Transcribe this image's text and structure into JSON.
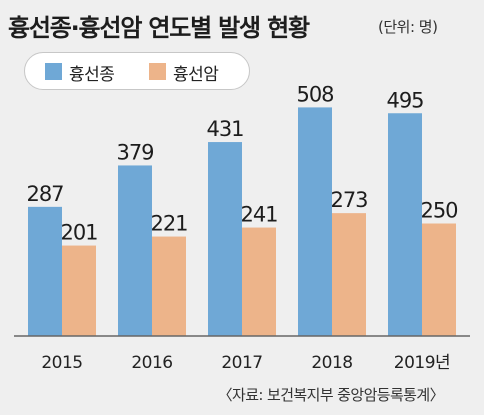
{
  "title": "흉선종·흉선암 연도별 발생 현황",
  "unit": "(단위: 명)",
  "source": "〈자료: 보건복지부 중앙암등록통계〉",
  "colors": {
    "background": "#efefef",
    "series_1": "#6fa8d6",
    "series_2": "#edb48a",
    "baseline": "#666666"
  },
  "legend": [
    {
      "label": "흉선종",
      "color": "#6fa8d6"
    },
    {
      "label": "흉선암",
      "color": "#edb48a"
    }
  ],
  "chart_data": {
    "type": "bar",
    "categories": [
      "2015",
      "2016",
      "2017",
      "2018",
      "2019년"
    ],
    "series": [
      {
        "name": "흉선종",
        "values": [
          287,
          379,
          431,
          508,
          495
        ]
      },
      {
        "name": "흉선암",
        "values": [
          201,
          221,
          241,
          273,
          250
        ]
      }
    ],
    "title": "흉선종·흉선암 연도별 발생 현황",
    "unit": "(단위: 명)",
    "xlabel": "",
    "ylabel": "",
    "ylim": [
      0,
      600
    ],
    "grid": false,
    "legend_position": "top-left"
  }
}
